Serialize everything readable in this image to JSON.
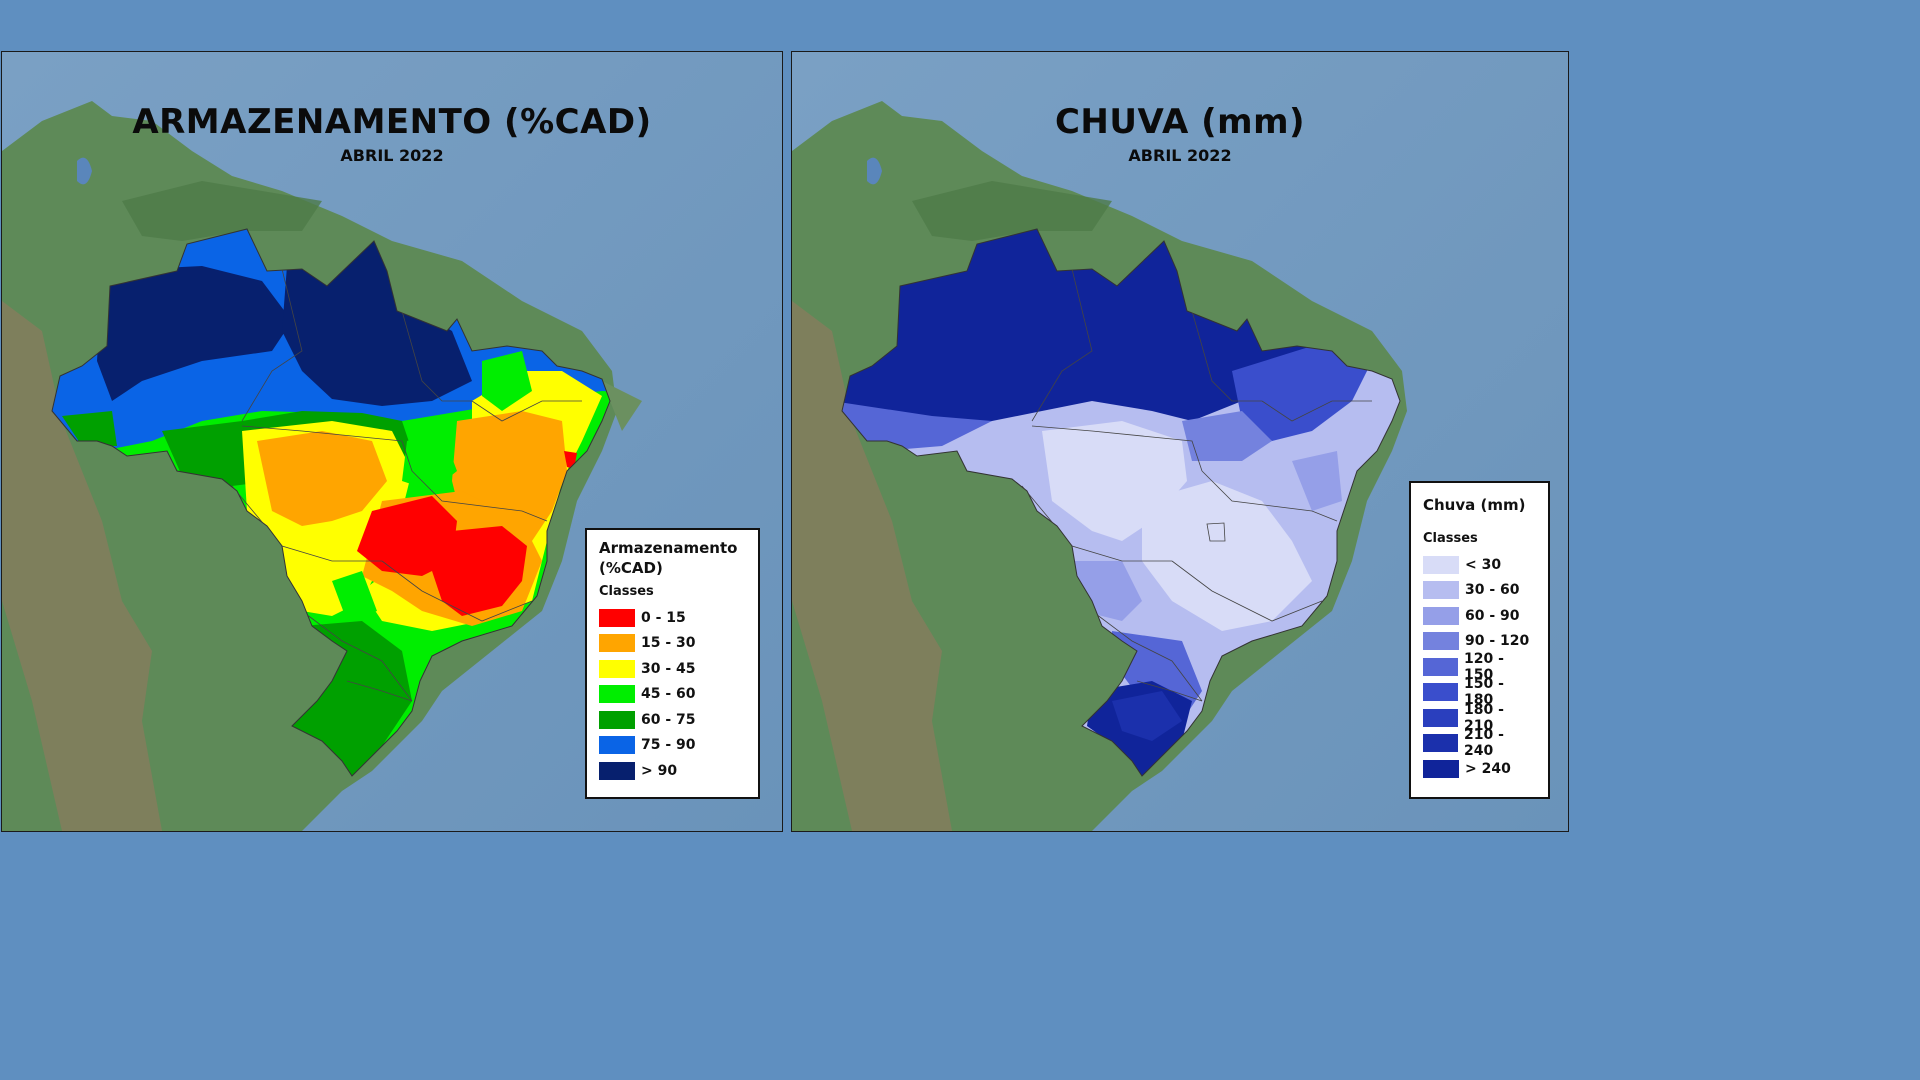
{
  "left": {
    "title": "ARMAZENAMENTO (%CAD)",
    "subtitle": "ABRIL 2022",
    "legend": {
      "title_line1": "Armazenamento",
      "title_line2": "(%CAD)",
      "classes_label": "Classes",
      "items": [
        {
          "label": "0 - 15",
          "color": "#ff0000"
        },
        {
          "label": "15 - 30",
          "color": "#ffa500"
        },
        {
          "label": "30 - 45",
          "color": "#ffff00"
        },
        {
          "label": "45 - 60",
          "color": "#00ee00"
        },
        {
          "label": "60 - 75",
          "color": "#00a000"
        },
        {
          "label": "75 - 90",
          "color": "#0a64e6"
        },
        {
          "label": "> 90",
          "color": "#07206e"
        }
      ]
    }
  },
  "right": {
    "title": "CHUVA (mm)",
    "subtitle": "ABRIL 2022",
    "legend": {
      "title_line1": "Chuva (mm)",
      "classes_label": "Classes",
      "items": [
        {
          "label": "< 30",
          "color": "#d8dcf7"
        },
        {
          "label": "30 - 60",
          "color": "#b6bdf0"
        },
        {
          "label": "60 - 90",
          "color": "#959fe8"
        },
        {
          "label": "90 - 120",
          "color": "#7482de"
        },
        {
          "label": "120 - 150",
          "color": "#5566d6"
        },
        {
          "label": "150 - 180",
          "color": "#3a4ecc"
        },
        {
          "label": "180 - 210",
          "color": "#2a3fbe"
        },
        {
          "label": "210 - 240",
          "color": "#1b30ac"
        },
        {
          "label": "> 240",
          "color": "#10249a"
        }
      ]
    }
  }
}
